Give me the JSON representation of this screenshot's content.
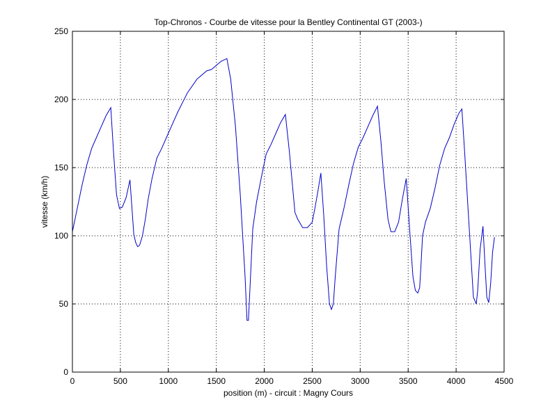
{
  "chart_data": {
    "type": "line",
    "title": "Top-Chronos - Courbe de vitesse pour la Bentley Continental GT (2003-)",
    "xlabel": "position (m) - circuit : Magny Cours",
    "ylabel": "vitesse (km/h)",
    "xlim": [
      0,
      4500
    ],
    "ylim": [
      0,
      250
    ],
    "xticks": [
      0,
      500,
      1000,
      1500,
      2000,
      2500,
      3000,
      3500,
      4000,
      4500
    ],
    "yticks": [
      0,
      50,
      100,
      150,
      200,
      250
    ],
    "xtick_labels": [
      "0",
      "500",
      "1000",
      "1500",
      "2000",
      "2500",
      "3000",
      "3500",
      "4000",
      "4500"
    ],
    "ytick_labels": [
      "0",
      "50",
      "100",
      "150",
      "200",
      "250"
    ],
    "grid": true,
    "line_color": "#0000c8",
    "series": [
      {
        "x": [
          0,
          50,
          100,
          150,
          200,
          250,
          300,
          350,
          400,
          430,
          460,
          490,
          520,
          560,
          600,
          640,
          660,
          680,
          700,
          730,
          760,
          790,
          830,
          880,
          930,
          980,
          1030,
          1100,
          1200,
          1300,
          1400,
          1450,
          1500,
          1550,
          1610,
          1650,
          1700,
          1750,
          1800,
          1820,
          1835,
          1850,
          1880,
          1920,
          1970,
          2020,
          2070,
          2120,
          2170,
          2220,
          2260,
          2290,
          2320,
          2350,
          2400,
          2450,
          2500,
          2530,
          2560,
          2590,
          2620,
          2650,
          2680,
          2700,
          2720,
          2740,
          2780,
          2830,
          2880,
          2930,
          2980,
          3030,
          3080,
          3130,
          3180,
          3215,
          3250,
          3290,
          3320,
          3360,
          3400,
          3440,
          3480,
          3520,
          3550,
          3575,
          3600,
          3620,
          3635,
          3650,
          3680,
          3730,
          3780,
          3830,
          3880,
          3930,
          3980,
          4030,
          4060,
          4090,
          4120,
          4150,
          4180,
          4210,
          4225,
          4250,
          4280,
          4300,
          4320,
          4340,
          4360,
          4380,
          4400
        ],
        "y": [
          103,
          120,
          137,
          152,
          164,
          172,
          180,
          188,
          194,
          160,
          130,
          120,
          121,
          128,
          141,
          101,
          95,
          92,
          93,
          100,
          112,
          127,
          142,
          157,
          164,
          172,
          180,
          191,
          205,
          215,
          221,
          222,
          225,
          228,
          230,
          215,
          180,
          130,
          70,
          38,
          38,
          60,
          105,
          125,
          143,
          160,
          167,
          175,
          183,
          189,
          163,
          140,
          117,
          112,
          106,
          106,
          110,
          121,
          133,
          146,
          115,
          78,
          50,
          46,
          50,
          70,
          105,
          120,
          137,
          153,
          165,
          172,
          180,
          188,
          195,
          170,
          140,
          112,
          103,
          103,
          110,
          127,
          142,
          100,
          70,
          60,
          58,
          62,
          80,
          100,
          110,
          120,
          135,
          152,
          164,
          172,
          182,
          190,
          193,
          160,
          125,
          90,
          55,
          50,
          60,
          90,
          107,
          80,
          55,
          51,
          65,
          88,
          99
        ]
      }
    ]
  }
}
